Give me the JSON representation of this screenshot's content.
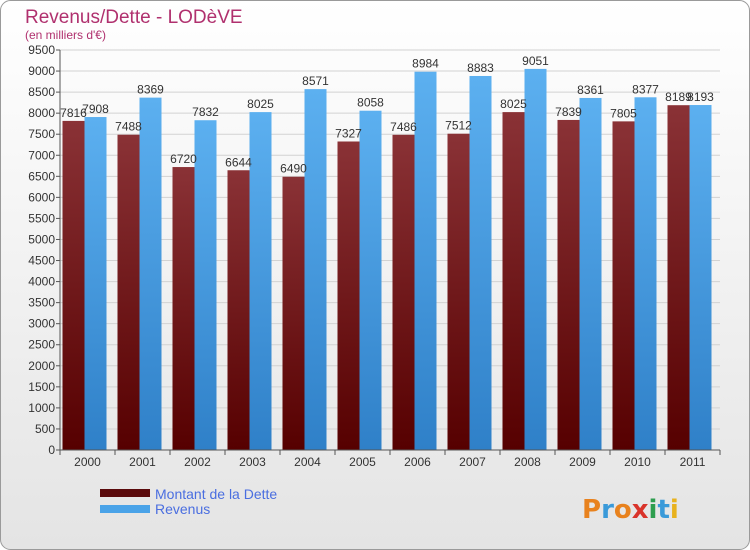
{
  "chart_data": {
    "type": "bar",
    "title": "Revenus/Dette - LODèVE",
    "subtitle": "(en milliers d'€)",
    "categories": [
      "2000",
      "2001",
      "2002",
      "2003",
      "2004",
      "2005",
      "2006",
      "2007",
      "2008",
      "2009",
      "2010",
      "2011"
    ],
    "series": [
      {
        "name": "Montant de la Dette",
        "color": "#7a2a2e",
        "values": [
          7816,
          7488,
          6720,
          6644,
          6490,
          7327,
          7486,
          7512,
          8025,
          7839,
          7805,
          8189
        ]
      },
      {
        "name": "Revenus",
        "color": "#4aa3e8",
        "values": [
          7908,
          8369,
          7832,
          8025,
          8571,
          8058,
          8984,
          8883,
          9051,
          8361,
          8377,
          8193
        ]
      }
    ],
    "ylim": [
      0,
      9500
    ],
    "ytick_step": 500,
    "grid": true,
    "legend_position": "bottom-left"
  },
  "branding": {
    "logo_text": "Proxiti"
  }
}
